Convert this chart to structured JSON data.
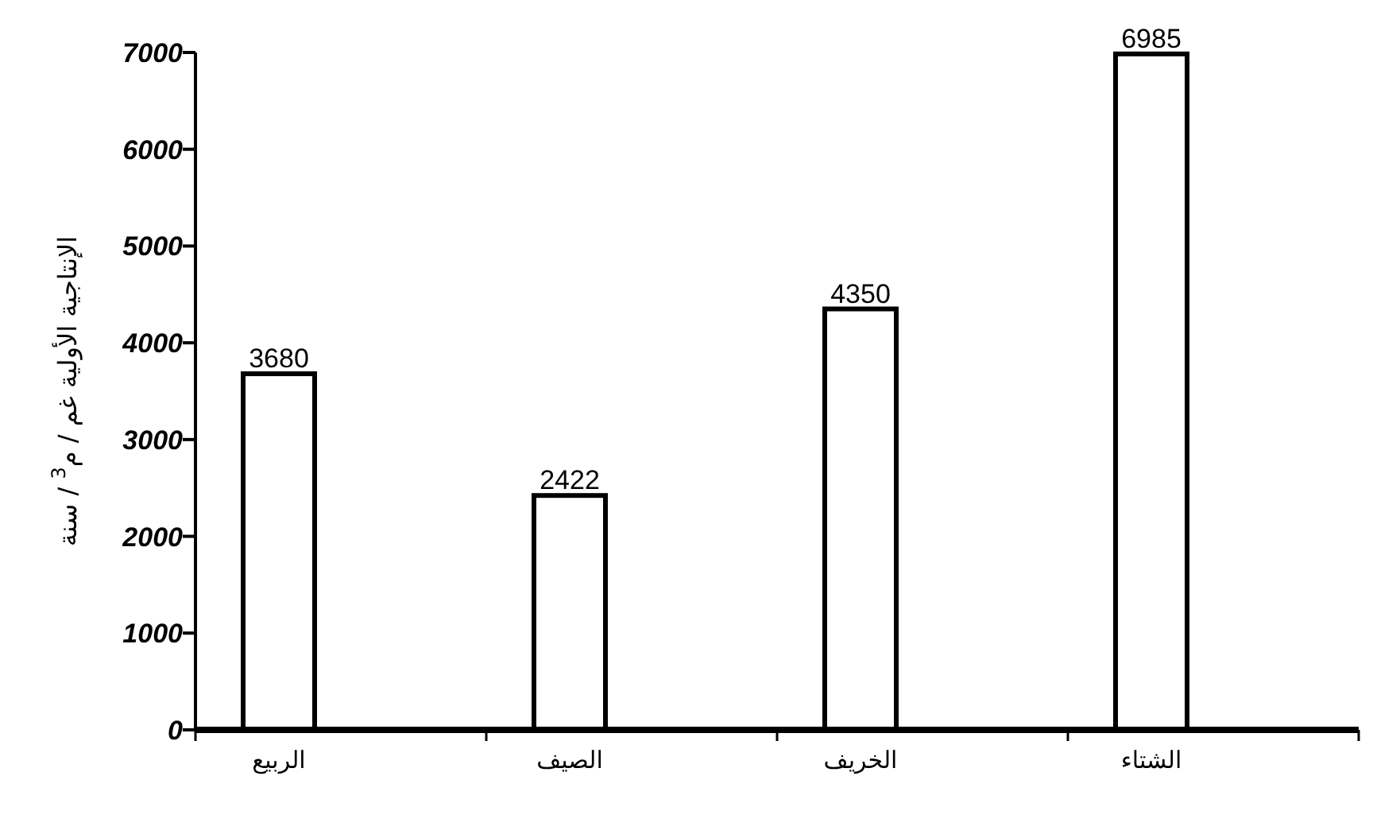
{
  "chart_data": {
    "type": "bar",
    "ylabel": "الإنتاجية الأولية غم / م$^{3}$ / سنة",
    "categories": [
      "الربيع",
      "الصيف",
      "الخريف",
      "الشتاء"
    ],
    "values": [
      3680,
      2422,
      4350,
      6985
    ],
    "color": "#ffffff",
    "data_labels": true,
    "ylim": [
      0,
      7000
    ],
    "yticks": [
      0,
      1000,
      2000,
      3000,
      4000,
      5000,
      6000,
      7000
    ],
    "grid": false
  }
}
